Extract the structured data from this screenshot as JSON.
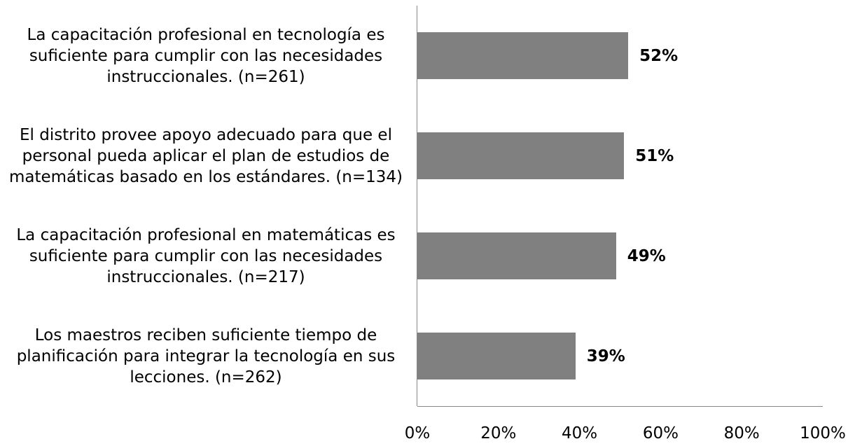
{
  "chart_data": {
    "type": "bar",
    "orientation": "horizontal",
    "categories": [
      "La capacitación profesional en tecnología es suficiente para cumplir con las necesidades instruccionales. (n=261)",
      "El distrito provee apoyo adecuado para que el personal pueda aplicar el plan de estudios de matemáticas basado en los estándares. (n=134)",
      "La capacitación profesional en matemáticas es suficiente para cumplir con las necesidades instruccionales. (n=217)",
      "Los maestros reciben suficiente tiempo de planificación para integrar la tecnología en sus lecciones. (n=262)"
    ],
    "values": [
      52,
      51,
      49,
      39
    ],
    "value_labels": [
      "52%",
      "51%",
      "49%",
      "39%"
    ],
    "color": "#808080",
    "xlim": [
      0,
      100
    ],
    "xticks": [
      {
        "value": 0,
        "label": "0%"
      },
      {
        "value": 20,
        "label": "20%"
      },
      {
        "value": 40,
        "label": "40%"
      },
      {
        "value": 60,
        "label": "60%"
      },
      {
        "value": 80,
        "label": "80%"
      },
      {
        "value": 100,
        "label": "100%"
      }
    ],
    "grid": false
  }
}
